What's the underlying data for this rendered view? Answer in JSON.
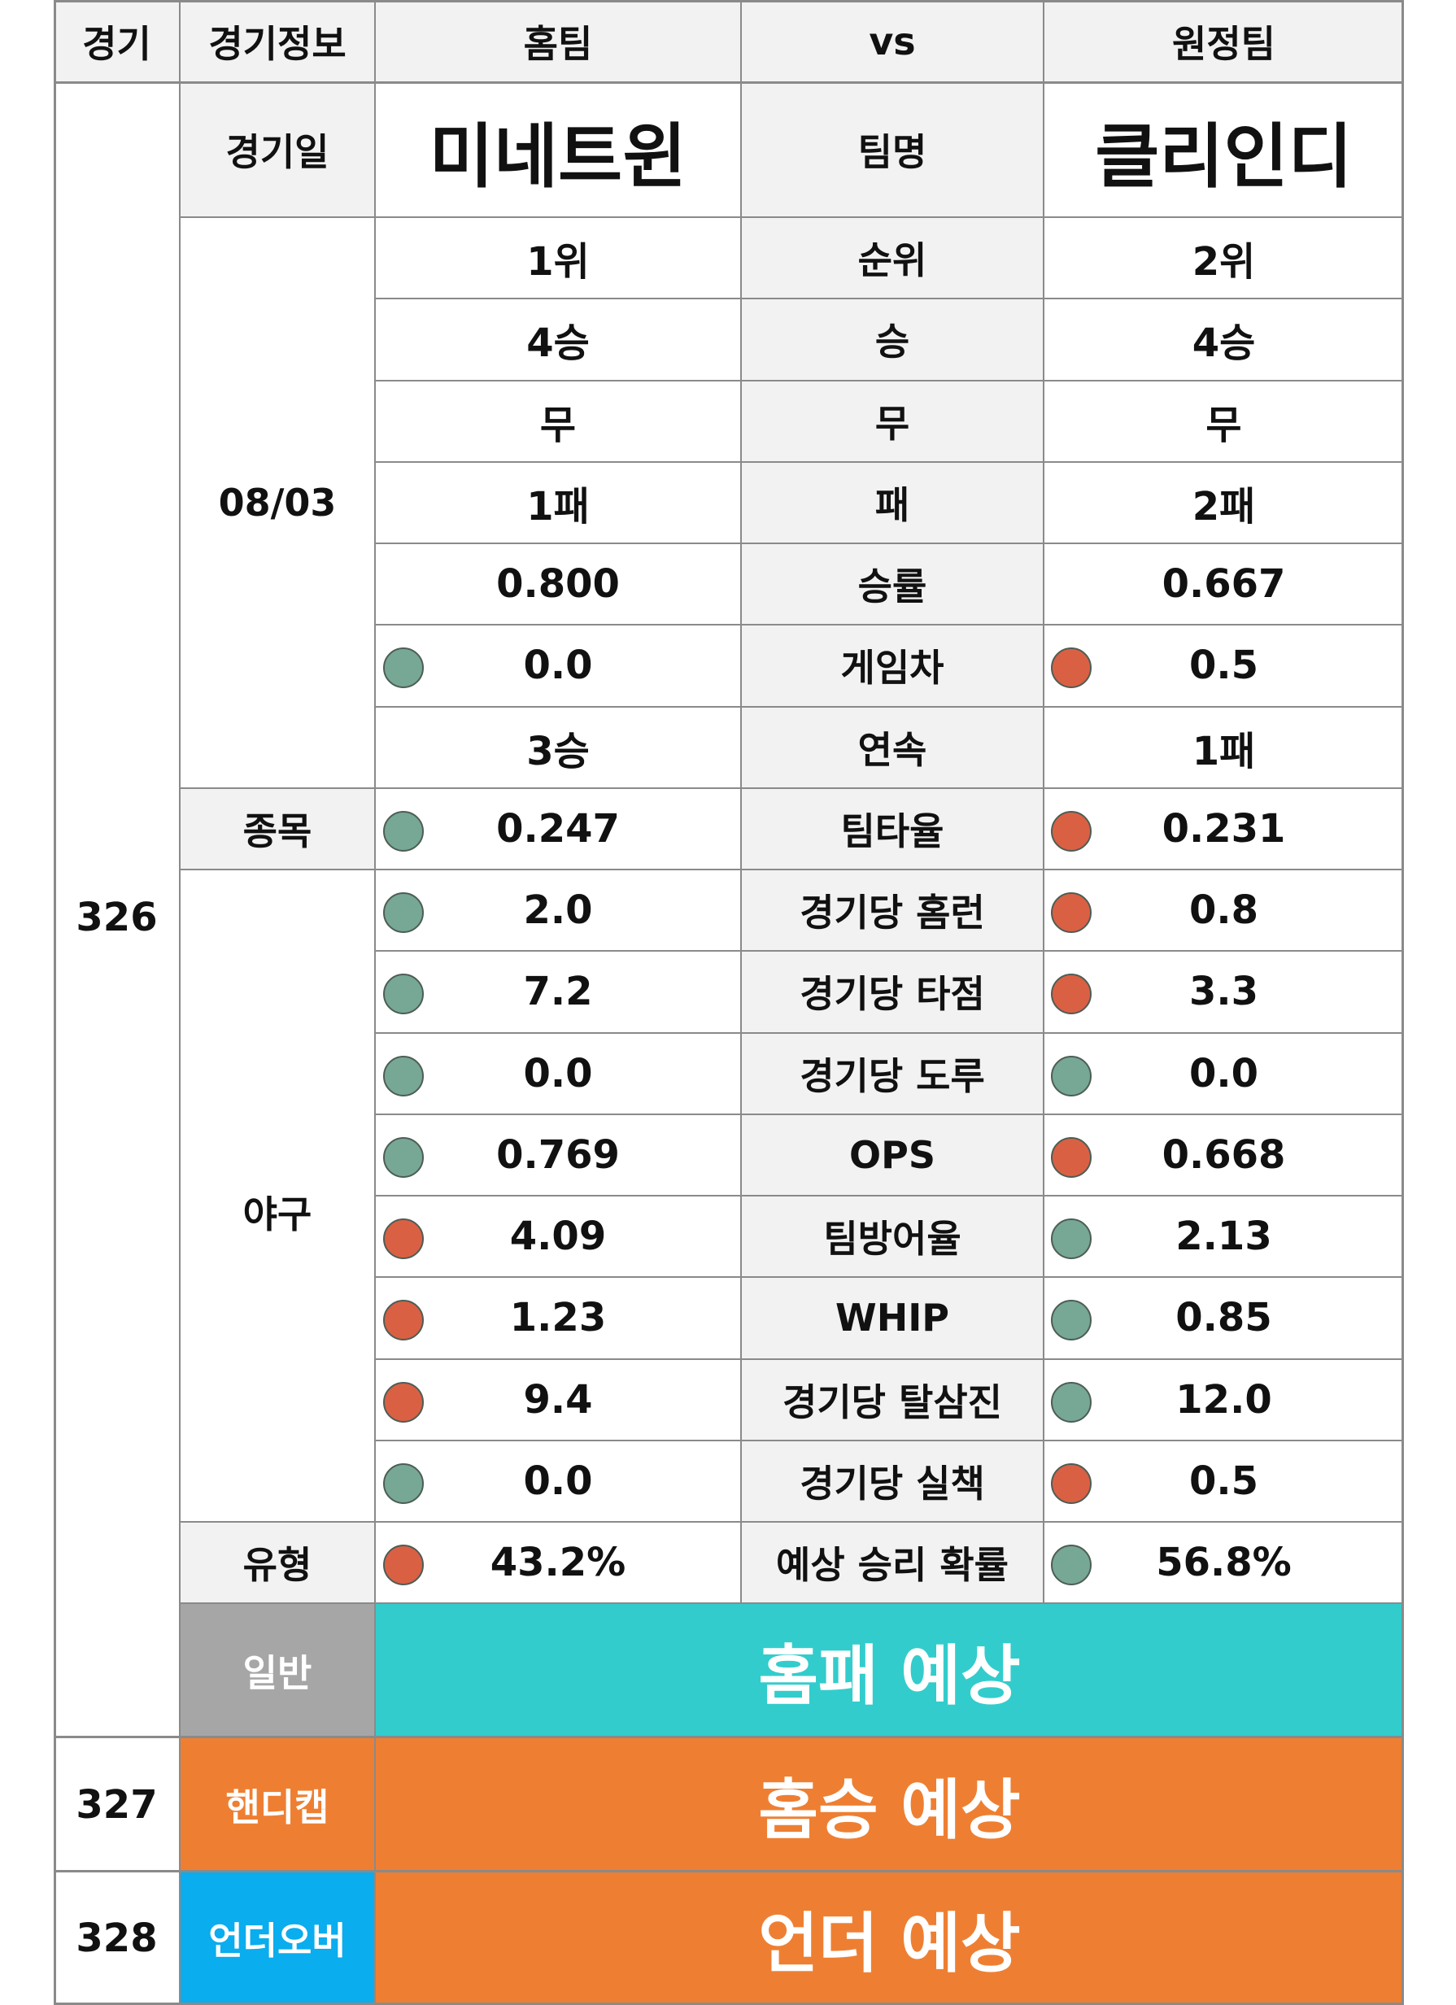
{
  "colors": {
    "grid_line": "#8a8a8a",
    "header_bg": "#f2f2f2",
    "label_bg": "#f2f2f2",
    "good_dot": "#76a895",
    "bad_dot": "#da6044",
    "general_label_bg": "#a6a6a6",
    "general_result_bg": "#33cccc",
    "handicap_bg": "#ee7f32",
    "underover_label_bg": "#0aadee",
    "result_bg_orange": "#ee7f32",
    "white_text": "#ffffff"
  },
  "header": {
    "game": "경기",
    "game_info": "경기정보",
    "home_team": "홈팀",
    "vs": "vs",
    "away_team": "원정팀"
  },
  "game": {
    "number": "326",
    "date_label": "경기일",
    "home_name": "미네트윈",
    "team_name_label": "팀명",
    "away_name": "클리인디",
    "date": "08/03",
    "sport_label": "종목",
    "sport": "야구",
    "type_label": "유형"
  },
  "stats": [
    {
      "label": "순위",
      "home": "1위",
      "away": "2위",
      "home_dot": "",
      "away_dot": ""
    },
    {
      "label": "승",
      "home": "4승",
      "away": "4승",
      "home_dot": "",
      "away_dot": ""
    },
    {
      "label": "무",
      "home": "무",
      "away": "무",
      "home_dot": "",
      "away_dot": ""
    },
    {
      "label": "패",
      "home": "1패",
      "away": "2패",
      "home_dot": "",
      "away_dot": ""
    },
    {
      "label": "승률",
      "home": "0.800",
      "away": "0.667",
      "home_dot": "",
      "away_dot": ""
    },
    {
      "label": "게임차",
      "home": "0.0",
      "away": "0.5",
      "home_dot": "good",
      "away_dot": "bad"
    },
    {
      "label": "연속",
      "home": "3승",
      "away": "1패",
      "home_dot": "",
      "away_dot": ""
    },
    {
      "label": "팀타율",
      "home": "0.247",
      "away": "0.231",
      "home_dot": "good",
      "away_dot": "bad"
    },
    {
      "label": "경기당 홈런",
      "home": "2.0",
      "away": "0.8",
      "home_dot": "good",
      "away_dot": "bad"
    },
    {
      "label": "경기당 타점",
      "home": "7.2",
      "away": "3.3",
      "home_dot": "good",
      "away_dot": "bad"
    },
    {
      "label": "경기당 도루",
      "home": "0.0",
      "away": "0.0",
      "home_dot": "good",
      "away_dot": "good"
    },
    {
      "label": "OPS",
      "home": "0.769",
      "away": "0.668",
      "home_dot": "good",
      "away_dot": "bad"
    },
    {
      "label": "팀방어율",
      "home": "4.09",
      "away": "2.13",
      "home_dot": "bad",
      "away_dot": "good"
    },
    {
      "label": "WHIP",
      "home": "1.23",
      "away": "0.85",
      "home_dot": "bad",
      "away_dot": "good"
    },
    {
      "label": "경기당 탈삼진",
      "home": "9.4",
      "away": "12.0",
      "home_dot": "bad",
      "away_dot": "good"
    },
    {
      "label": "경기당 실책",
      "home": "0.0",
      "away": "0.5",
      "home_dot": "good",
      "away_dot": "bad"
    },
    {
      "label": "예상 승리 확률",
      "home": "43.2%",
      "away": "56.8%",
      "home_dot": "bad",
      "away_dot": "good"
    }
  ],
  "predictions": [
    {
      "number": "",
      "label": "일반",
      "result": "홈패 예상",
      "label_bg": "#a6a6a6",
      "result_bg": "#33cccc"
    },
    {
      "number": "327",
      "label": "핸디캡",
      "result": "홈승 예상",
      "label_bg": "#ee7f32",
      "result_bg": "#ee7f32"
    },
    {
      "number": "328",
      "label": "언더오버",
      "result": "언더 예상",
      "label_bg": "#0aadee",
      "result_bg": "#ee7f32"
    }
  ]
}
